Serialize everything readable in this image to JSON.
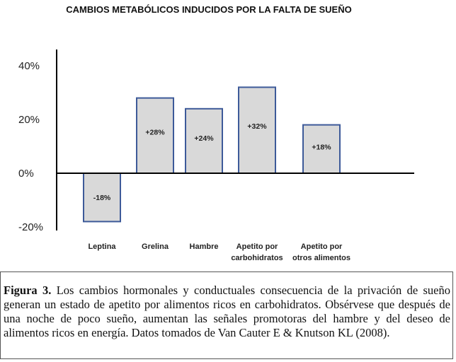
{
  "chart_data": {
    "type": "bar",
    "title": "CAMBIOS METABÓLICOS INDUCIDOS POR LA FALTA DE SUEÑO",
    "categories": [
      [
        "Leptina"
      ],
      [
        "Grelina"
      ],
      [
        "Hambre"
      ],
      [
        "Apetito por",
        "carbohidratos"
      ],
      [
        "Apetito por",
        "otros alimentos"
      ]
    ],
    "values": [
      -18,
      28,
      24,
      32,
      18
    ],
    "data_labels": [
      "-18%",
      "+28%",
      "+24%",
      "+32%",
      "+18%"
    ],
    "y_ticks": [
      -20,
      0,
      20,
      40
    ],
    "y_tick_labels": [
      "-20%",
      "0%",
      "20%",
      "40%"
    ],
    "ylim": [
      -20,
      40
    ],
    "grid": false,
    "legend": "none",
    "bar_fill": "#d9d9d9",
    "bar_stroke": "#3d5a99"
  },
  "caption": {
    "figure_label": "Figura 3.",
    "text": " Los cambios hormonales y conductuales consecuencia de la privación de sueño generan un estado de apetito por alimentos ricos en carbohidratos. Obsérvese que después de una noche de poco sueño, aumentan las señales promotoras del hambre y del deseo de alimentos ricos en energía. Datos tomados de Van Cauter E & Knutson KL (2008)."
  }
}
